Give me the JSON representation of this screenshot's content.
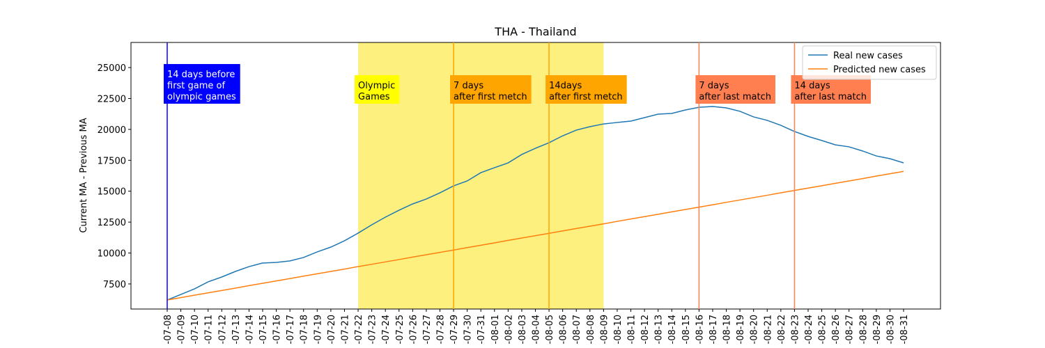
{
  "chart_data": {
    "type": "line",
    "title": "THA - Thailand",
    "y_label": "Current MA - Previous MA",
    "categories": [
      "-07-08",
      "-07-09",
      "-07-10",
      "-07-11",
      "-07-12",
      "-07-13",
      "-07-14",
      "-07-15",
      "-07-16",
      "-07-17",
      "-07-18",
      "-07-19",
      "-07-20",
      "-07-21",
      "-07-22",
      "-07-23",
      "-07-24",
      "-07-25",
      "-07-26",
      "-07-27",
      "-07-28",
      "-07-29",
      "-07-30",
      "-07-31",
      "-08-01",
      "-08-02",
      "-08-03",
      "-08-04",
      "-08-05",
      "-08-06",
      "-08-07",
      "-08-08",
      "-08-09",
      "-08-10",
      "-08-11",
      "-08-12",
      "-08-13",
      "-08-14",
      "-08-15",
      "-08-16",
      "-08-17",
      "-08-18",
      "-08-19",
      "-08-20",
      "-08-21",
      "-08-22",
      "-08-23",
      "-08-24",
      "-08-25",
      "-08-26",
      "-08-27",
      "-08-28",
      "-08-29",
      "-08-30",
      "-08-31"
    ],
    "series": [
      {
        "name": "Real new cases",
        "color": "#1f77b4",
        "values": [
          6200,
          6650,
          7100,
          7670,
          8060,
          8510,
          8900,
          9190,
          9240,
          9360,
          9640,
          10090,
          10480,
          10990,
          11610,
          12280,
          12900,
          13460,
          13970,
          14370,
          14870,
          15430,
          15830,
          16500,
          16900,
          17290,
          17970,
          18470,
          18920,
          19480,
          19940,
          20220,
          20440,
          20560,
          20670,
          20950,
          21230,
          21290,
          21570,
          21790,
          21850,
          21740,
          21460,
          21010,
          20730,
          20330,
          19830,
          19430,
          19100,
          18750,
          18590,
          18250,
          17850,
          17630,
          17290
        ]
      },
      {
        "name": "Predicted new cases",
        "color": "#ff7f0e",
        "values": [
          6200,
          6390,
          6590,
          6780,
          6970,
          7160,
          7360,
          7550,
          7740,
          7930,
          8130,
          8320,
          8510,
          8700,
          8900,
          9090,
          9280,
          9470,
          9670,
          9860,
          10050,
          10240,
          10440,
          10630,
          10820,
          11020,
          11210,
          11400,
          11590,
          11790,
          11980,
          12170,
          12360,
          12560,
          12750,
          12940,
          13130,
          13330,
          13520,
          13710,
          13900,
          14100,
          14290,
          14480,
          14670,
          14870,
          15060,
          15250,
          15440,
          15640,
          15830,
          16020,
          16220,
          16410,
          16600
        ]
      }
    ],
    "ylim": [
      5470,
      27030
    ],
    "yticks": [
      7500,
      10000,
      12500,
      15000,
      17500,
      20000,
      22500,
      25000
    ],
    "legend": "upper right",
    "span": {
      "start": "-07-22",
      "end": "-08-09",
      "color": "#fdf07f",
      "box_color": "yellow",
      "text_color": "black",
      "lines": [
        "Olympic",
        "Games"
      ]
    },
    "vlines": [
      {
        "x": "-07-08",
        "color": "blue",
        "box_color": "blue",
        "text_color": "white",
        "lines": [
          "14 days before",
          "first game of",
          "olympic games"
        ]
      },
      {
        "x": "-07-29",
        "color": "orange",
        "box_color": "orange",
        "text_color": "black",
        "lines": [
          "7 days",
          "after first metch"
        ]
      },
      {
        "x": "-08-05",
        "color": "orange",
        "box_color": "orange",
        "text_color": "black",
        "lines": [
          "14days",
          "after first metch"
        ]
      },
      {
        "x": "-08-16",
        "color": "coral",
        "box_color": "coral",
        "text_color": "black",
        "lines": [
          "7 days",
          "after last match"
        ]
      },
      {
        "x": "-08-23",
        "color": "coral",
        "box_color": "coral",
        "text_color": "black",
        "lines": [
          "14 days",
          "after last match"
        ]
      }
    ]
  }
}
